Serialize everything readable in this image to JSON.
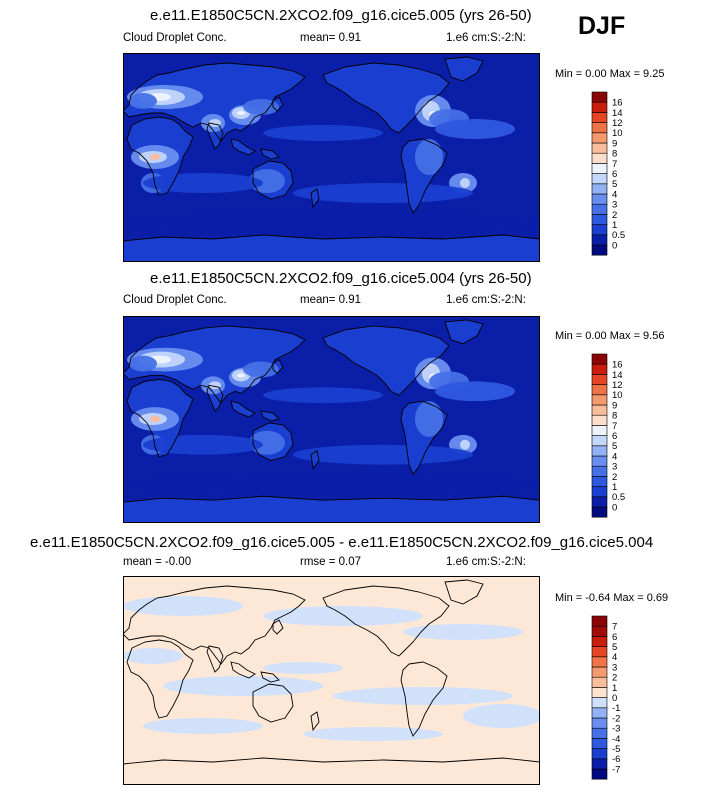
{
  "season_label": "DJF",
  "panels": [
    {
      "title": "e.e11.E1850C5CN.2XCO2.f09_g16.cice5.005 (yrs 26-50)",
      "variable": "Cloud Droplet Conc.",
      "stat_text": "mean=  0.91",
      "units": "1.e6 cm:S:-2:N:",
      "minmax": "Min =  0.00 Max =  9.25"
    },
    {
      "title": "e.e11.E1850C5CN.2XCO2.f09_g16.cice5.004 (yrs 26-50)",
      "variable": "Cloud Droplet Conc.",
      "stat_text": "mean=  0.91",
      "units": "1.e6 cm:S:-2:N:",
      "minmax": "Min =  0.00 Max =  9.56"
    },
    {
      "title": "e.e11.E1850C5CN.2XCO2.f09_g16.cice5.005 - e.e11.E1850C5CN.2XCO2.f09_g16.cice5.004",
      "variable": "mean =  -0.00",
      "stat_text": "rmse =  0.07",
      "units": "1.e6 cm:S:-2:N:",
      "minmax": "Min = -0.64 Max =  0.69"
    }
  ],
  "chart_data": [
    {
      "type": "heatmap",
      "title": "e.e11.E1850C5CN.2XCO2.f09_g16.cice5.005 (yrs 26-50)",
      "variable": "Cloud Droplet Conc.",
      "units": "1.e6 cm:S:-2:N:",
      "mean": 0.91,
      "min": 0.0,
      "max": 9.25,
      "colorbar_levels": [
        "0",
        "0.5",
        "1",
        "2",
        "3",
        "4",
        "5",
        "6",
        "7",
        "8",
        "9",
        "10",
        "12",
        "14",
        "16"
      ],
      "colorbar_colors": [
        "#010a7e",
        "#0a1ea8",
        "#1a3fd0",
        "#2f58e0",
        "#4670e6",
        "#6a8ff0",
        "#93b2f5",
        "#c3d6fb",
        "#eef3fe",
        "#fcdfcb",
        "#f9bd9a",
        "#f59a6e",
        "#ef7346",
        "#e54522",
        "#c91d0c",
        "#8a0505"
      ]
    },
    {
      "type": "heatmap",
      "title": "e.e11.E1850C5CN.2XCO2.f09_g16.cice5.004 (yrs 26-50)",
      "variable": "Cloud Droplet Conc.",
      "units": "1.e6 cm:S:-2:N:",
      "mean": 0.91,
      "min": 0.0,
      "max": 9.56,
      "colorbar_levels": [
        "0",
        "0.5",
        "1",
        "2",
        "3",
        "4",
        "5",
        "6",
        "7",
        "8",
        "9",
        "10",
        "12",
        "14",
        "16"
      ],
      "colorbar_colors": [
        "#010a7e",
        "#0a1ea8",
        "#1a3fd0",
        "#2f58e0",
        "#4670e6",
        "#6a8ff0",
        "#93b2f5",
        "#c3d6fb",
        "#eef3fe",
        "#fcdfcb",
        "#f9bd9a",
        "#f59a6e",
        "#ef7346",
        "#e54522",
        "#c91d0c",
        "#8a0505"
      ]
    },
    {
      "type": "heatmap",
      "title": "e.e11.E1850C5CN.2XCO2.f09_g16.cice5.005 - e.e11.E1850C5CN.2XCO2.f09_g16.cice5.004",
      "units": "1.e6 cm:S:-2:N:",
      "mean": -0.0,
      "rmse": 0.07,
      "min": -0.64,
      "max": 0.69,
      "colorbar_levels": [
        "-7",
        "-6",
        "-5",
        "-4",
        "-3",
        "-2",
        "-1",
        "0",
        "1",
        "2",
        "3",
        "4",
        "5",
        "6",
        "7"
      ],
      "colorbar_colors": [
        "#010a7e",
        "#0a1ea8",
        "#1a3fd0",
        "#2f58e0",
        "#4670e6",
        "#6a8ff0",
        "#93b2f5",
        "#cfe0fb",
        "#fde2cf",
        "#f9bd9a",
        "#f59a6e",
        "#ef7346",
        "#e54522",
        "#c91d0c",
        "#a00c08",
        "#8a0505"
      ]
    }
  ]
}
